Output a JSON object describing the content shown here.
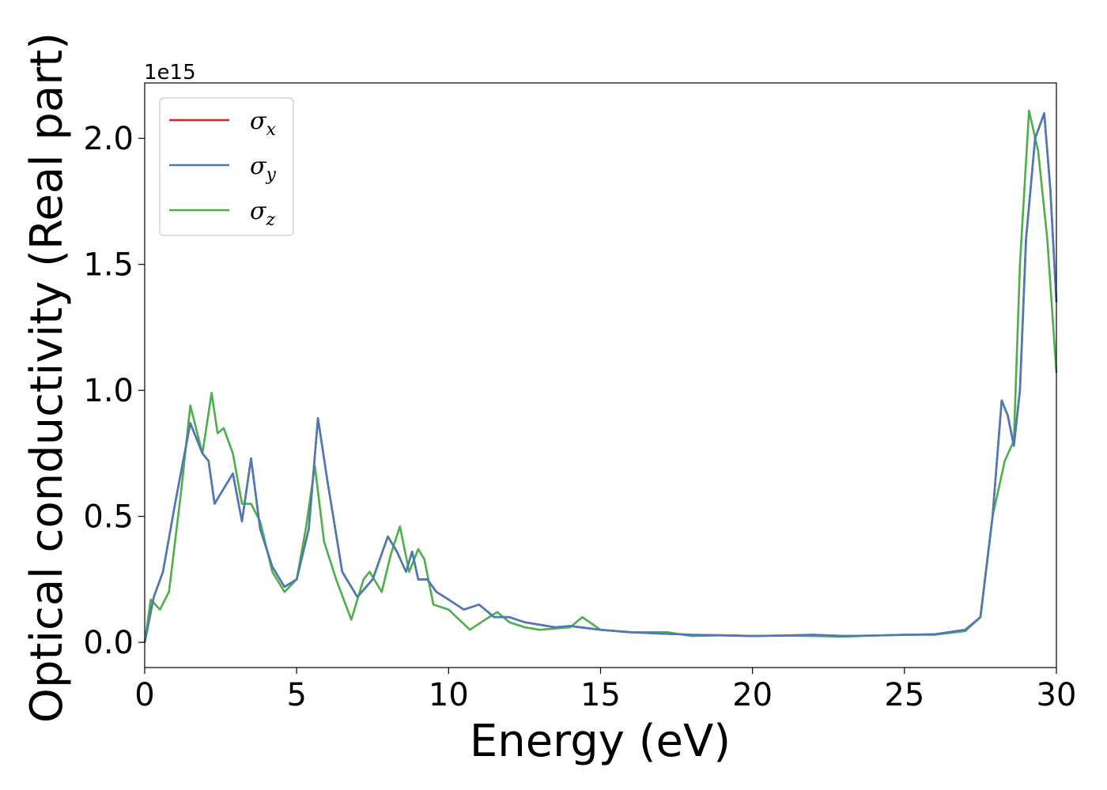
{
  "chart_data": {
    "type": "line",
    "title": "",
    "xlabel": "Energy (eV)",
    "ylabel": "Optical conductivity (Real part)",
    "y_offset_text": "1e15",
    "xlim": [
      0,
      30
    ],
    "ylim": [
      -0.1,
      2.22
    ],
    "xticks": [
      0,
      5,
      10,
      15,
      20,
      25,
      30
    ],
    "xtick_labels": [
      "0",
      "5",
      "10",
      "15",
      "20",
      "25",
      "30"
    ],
    "yticks": [
      0.0,
      0.5,
      1.0,
      1.5,
      2.0
    ],
    "ytick_labels": [
      "0.0",
      "0.5",
      "1.0",
      "1.5",
      "2.0"
    ],
    "grid": false,
    "legend_position": "top-left",
    "series": [
      {
        "name": "σx",
        "base": "σ",
        "sub": "x",
        "color": "#d62728",
        "x": [
          0,
          0.3,
          0.6,
          1.0,
          1.5,
          1.9,
          2.1,
          2.3,
          2.6,
          2.9,
          3.2,
          3.5,
          3.8,
          4.2,
          4.6,
          5.0,
          5.4,
          5.7,
          6.0,
          6.5,
          7.0,
          7.5,
          8.0,
          8.3,
          8.6,
          8.8,
          9.0,
          9.3,
          9.6,
          10.0,
          10.5,
          11.0,
          11.5,
          12.0,
          12.5,
          13.0,
          13.5,
          14.0,
          15.0,
          16.0,
          17.0,
          18.0,
          19.0,
          20.0,
          21.0,
          22.0,
          23.0,
          24.0,
          25.0,
          26.0,
          27.0,
          27.5,
          27.9,
          28.2,
          28.4,
          28.6,
          28.8,
          29.0,
          29.3,
          29.6,
          29.8,
          30.0
        ],
        "values": [
          0.0,
          0.18,
          0.28,
          0.55,
          0.87,
          0.75,
          0.72,
          0.55,
          0.61,
          0.67,
          0.48,
          0.73,
          0.45,
          0.3,
          0.22,
          0.25,
          0.45,
          0.89,
          0.65,
          0.28,
          0.18,
          0.25,
          0.42,
          0.36,
          0.28,
          0.36,
          0.25,
          0.25,
          0.2,
          0.17,
          0.13,
          0.15,
          0.1,
          0.1,
          0.08,
          0.07,
          0.06,
          0.065,
          0.05,
          0.04,
          0.035,
          0.03,
          0.028,
          0.025,
          0.027,
          0.03,
          0.025,
          0.027,
          0.03,
          0.032,
          0.05,
          0.1,
          0.5,
          0.96,
          0.9,
          0.78,
          1.0,
          1.6,
          2.0,
          2.1,
          1.8,
          1.35
        ]
      },
      {
        "name": "σy",
        "base": "σ",
        "sub": "y",
        "color": "#4a7bb7",
        "x": [
          0,
          0.3,
          0.6,
          1.0,
          1.5,
          1.9,
          2.1,
          2.3,
          2.6,
          2.9,
          3.2,
          3.5,
          3.8,
          4.2,
          4.6,
          5.0,
          5.4,
          5.7,
          6.0,
          6.5,
          7.0,
          7.5,
          8.0,
          8.3,
          8.6,
          8.8,
          9.0,
          9.3,
          9.6,
          10.0,
          10.5,
          11.0,
          11.5,
          12.0,
          12.5,
          13.0,
          13.5,
          14.0,
          15.0,
          16.0,
          17.0,
          18.0,
          19.0,
          20.0,
          21.0,
          22.0,
          23.0,
          24.0,
          25.0,
          26.0,
          27.0,
          27.5,
          27.9,
          28.2,
          28.4,
          28.6,
          28.8,
          29.0,
          29.3,
          29.6,
          29.8,
          30.0
        ],
        "values": [
          0.0,
          0.18,
          0.28,
          0.55,
          0.87,
          0.75,
          0.72,
          0.55,
          0.61,
          0.67,
          0.48,
          0.73,
          0.45,
          0.3,
          0.22,
          0.25,
          0.45,
          0.89,
          0.65,
          0.28,
          0.18,
          0.25,
          0.42,
          0.36,
          0.28,
          0.36,
          0.25,
          0.25,
          0.2,
          0.17,
          0.13,
          0.15,
          0.1,
          0.1,
          0.08,
          0.07,
          0.06,
          0.065,
          0.05,
          0.04,
          0.035,
          0.03,
          0.028,
          0.025,
          0.027,
          0.03,
          0.025,
          0.027,
          0.03,
          0.032,
          0.05,
          0.1,
          0.5,
          0.96,
          0.9,
          0.78,
          1.0,
          1.6,
          2.0,
          2.1,
          1.8,
          1.35
        ]
      },
      {
        "name": "σz",
        "base": "σ",
        "sub": "z",
        "color": "#4daf4a",
        "x": [
          0,
          0.2,
          0.5,
          0.8,
          1.2,
          1.5,
          1.9,
          2.2,
          2.4,
          2.6,
          2.9,
          3.2,
          3.5,
          3.8,
          4.2,
          4.6,
          5.0,
          5.3,
          5.6,
          5.9,
          6.3,
          6.8,
          7.2,
          7.4,
          7.8,
          8.1,
          8.4,
          8.7,
          9.0,
          9.2,
          9.5,
          10.0,
          10.7,
          11.2,
          11.6,
          12.0,
          12.5,
          13.0,
          14.0,
          14.4,
          15.0,
          16.0,
          17.2,
          18.0,
          19.0,
          20.0,
          21.0,
          22.0,
          23.0,
          24.0,
          25.0,
          26.0,
          27.0,
          27.5,
          27.9,
          28.3,
          28.6,
          28.8,
          29.1,
          29.4,
          29.7,
          30.0
        ],
        "values": [
          0.0,
          0.17,
          0.13,
          0.2,
          0.6,
          0.94,
          0.75,
          0.99,
          0.83,
          0.85,
          0.75,
          0.55,
          0.55,
          0.48,
          0.28,
          0.2,
          0.25,
          0.45,
          0.7,
          0.4,
          0.25,
          0.09,
          0.25,
          0.28,
          0.2,
          0.35,
          0.46,
          0.28,
          0.37,
          0.33,
          0.15,
          0.13,
          0.05,
          0.09,
          0.12,
          0.08,
          0.06,
          0.05,
          0.06,
          0.1,
          0.05,
          0.04,
          0.04,
          0.025,
          0.028,
          0.025,
          0.027,
          0.025,
          0.023,
          0.027,
          0.03,
          0.03,
          0.045,
          0.1,
          0.5,
          0.72,
          0.8,
          1.5,
          2.11,
          1.95,
          1.6,
          1.07
        ]
      }
    ]
  }
}
